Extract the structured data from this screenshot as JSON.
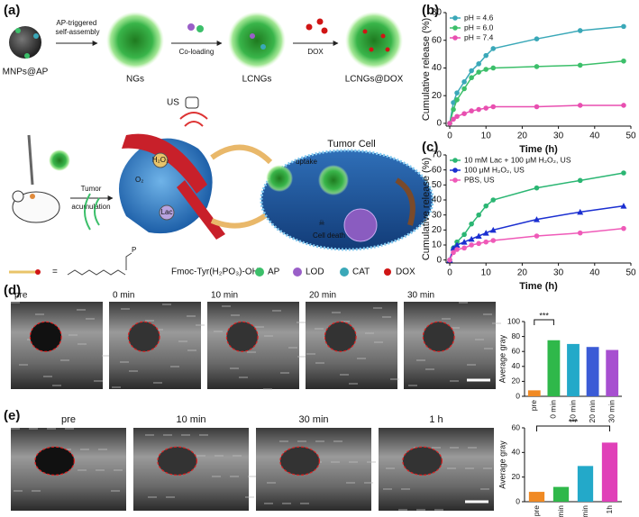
{
  "panel_labels": [
    "(a)",
    "(b)",
    "(c)",
    "(d)",
    "(e)"
  ],
  "schematic": {
    "steps": [
      "MNPs@AP",
      "NGs",
      "LCNGs",
      "LCNGs@DOX"
    ],
    "arrow_self_assembly": [
      "AP-triggered",
      "self-assembly"
    ],
    "arrow_coloading": "Co-loading",
    "arrow_dox": "DOX",
    "us": "US",
    "tumor_cell": "Tumor Cell",
    "tumor_arrow": [
      "Tumor",
      "acumulation"
    ],
    "uptake": "uptake",
    "cell_death": "Cell death",
    "lac": "Lac",
    "o2": "O₂",
    "h2o2": "H₂O₂",
    "equals": "=",
    "molecule": "Fmoc-Tyr(H₂PO₃)-OH",
    "legend_items": [
      "AP",
      "LOD",
      "CAT",
      "DOX"
    ]
  },
  "ultrasound": {
    "d": [
      "pre",
      "0 min",
      "10 min",
      "20 min",
      "30 min"
    ],
    "e": [
      "pre",
      "10 min",
      "30 min",
      "1 h"
    ]
  },
  "chart_data": [
    {
      "type": "line",
      "xlabel": "Time (h)",
      "ylabel": "Cumulative release (%)",
      "x": [
        0,
        1,
        2,
        4,
        6,
        8,
        10,
        12,
        24,
        36,
        48
      ],
      "xlim": [
        -1,
        50
      ],
      "xticks": [
        0,
        10,
        20,
        30,
        40,
        50
      ],
      "ylim": [
        -2,
        80
      ],
      "yticks": [
        0,
        20,
        40,
        60,
        80
      ],
      "legend": "upper left",
      "series": [
        {
          "name": "pH = 4.6",
          "color": "#3aa8b8",
          "values": [
            0,
            15,
            22,
            30,
            38,
            43,
            49,
            54,
            61,
            67,
            70
          ]
        },
        {
          "name": "pH = 6.0",
          "color": "#3cbf6a",
          "values": [
            0,
            10,
            17,
            25,
            33,
            37,
            39,
            40,
            41,
            42,
            45
          ]
        },
        {
          "name": "pH = 7.4",
          "color": "#e84fb0",
          "values": [
            0,
            3,
            5,
            7,
            9,
            10,
            11,
            12,
            12,
            13,
            13
          ]
        }
      ]
    },
    {
      "type": "line",
      "xlabel": "Time (h)",
      "ylabel": "Cumulative release (%)",
      "x": [
        0,
        1,
        2,
        4,
        6,
        8,
        10,
        12,
        24,
        36,
        48
      ],
      "xlim": [
        -1,
        50
      ],
      "xticks": [
        0,
        10,
        20,
        30,
        40,
        50
      ],
      "ylim": [
        -2,
        70
      ],
      "yticks": [
        0,
        10,
        20,
        30,
        40,
        50,
        60,
        70
      ],
      "legend": "upper left",
      "series": [
        {
          "name": "10 mM Lac + 100 μM H₂O₂, US",
          "color": "#2bb673",
          "values": [
            0,
            8,
            12,
            17,
            24,
            30,
            36,
            40,
            48,
            53,
            58
          ]
        },
        {
          "name": "100 μM H₂O₂, US",
          "color": "#1b2fd1",
          "values": [
            0,
            8,
            10,
            12,
            14,
            16,
            18,
            20,
            27,
            32,
            36
          ]
        },
        {
          "name": "PBS, US",
          "color": "#ef5ab8",
          "values": [
            0,
            5,
            7,
            8,
            10,
            11,
            12,
            13,
            16,
            18,
            21
          ]
        }
      ]
    },
    {
      "type": "bar",
      "ylabel": "Average gray",
      "categories": [
        "pre",
        "0 min",
        "10 min",
        "20 min",
        "30 min"
      ],
      "values": [
        8,
        75,
        70,
        66,
        62
      ],
      "colors": [
        "#f08a24",
        "#2fb84a",
        "#23a9c9",
        "#3b5bd6",
        "#a74fd0"
      ],
      "ylim": [
        0,
        100
      ],
      "yticks": [
        0,
        20,
        40,
        60,
        80,
        100
      ],
      "annotation": "***"
    },
    {
      "type": "bar",
      "ylabel": "Average gray",
      "categories": [
        "pre",
        "10 min",
        "30 min",
        "1h"
      ],
      "values": [
        8,
        12,
        29,
        48
      ],
      "colors": [
        "#f08a24",
        "#2fb84a",
        "#23a9c9",
        "#e040b8"
      ],
      "ylim": [
        0,
        60
      ],
      "yticks": [
        0,
        20,
        40,
        60
      ],
      "annotation": "***"
    }
  ]
}
